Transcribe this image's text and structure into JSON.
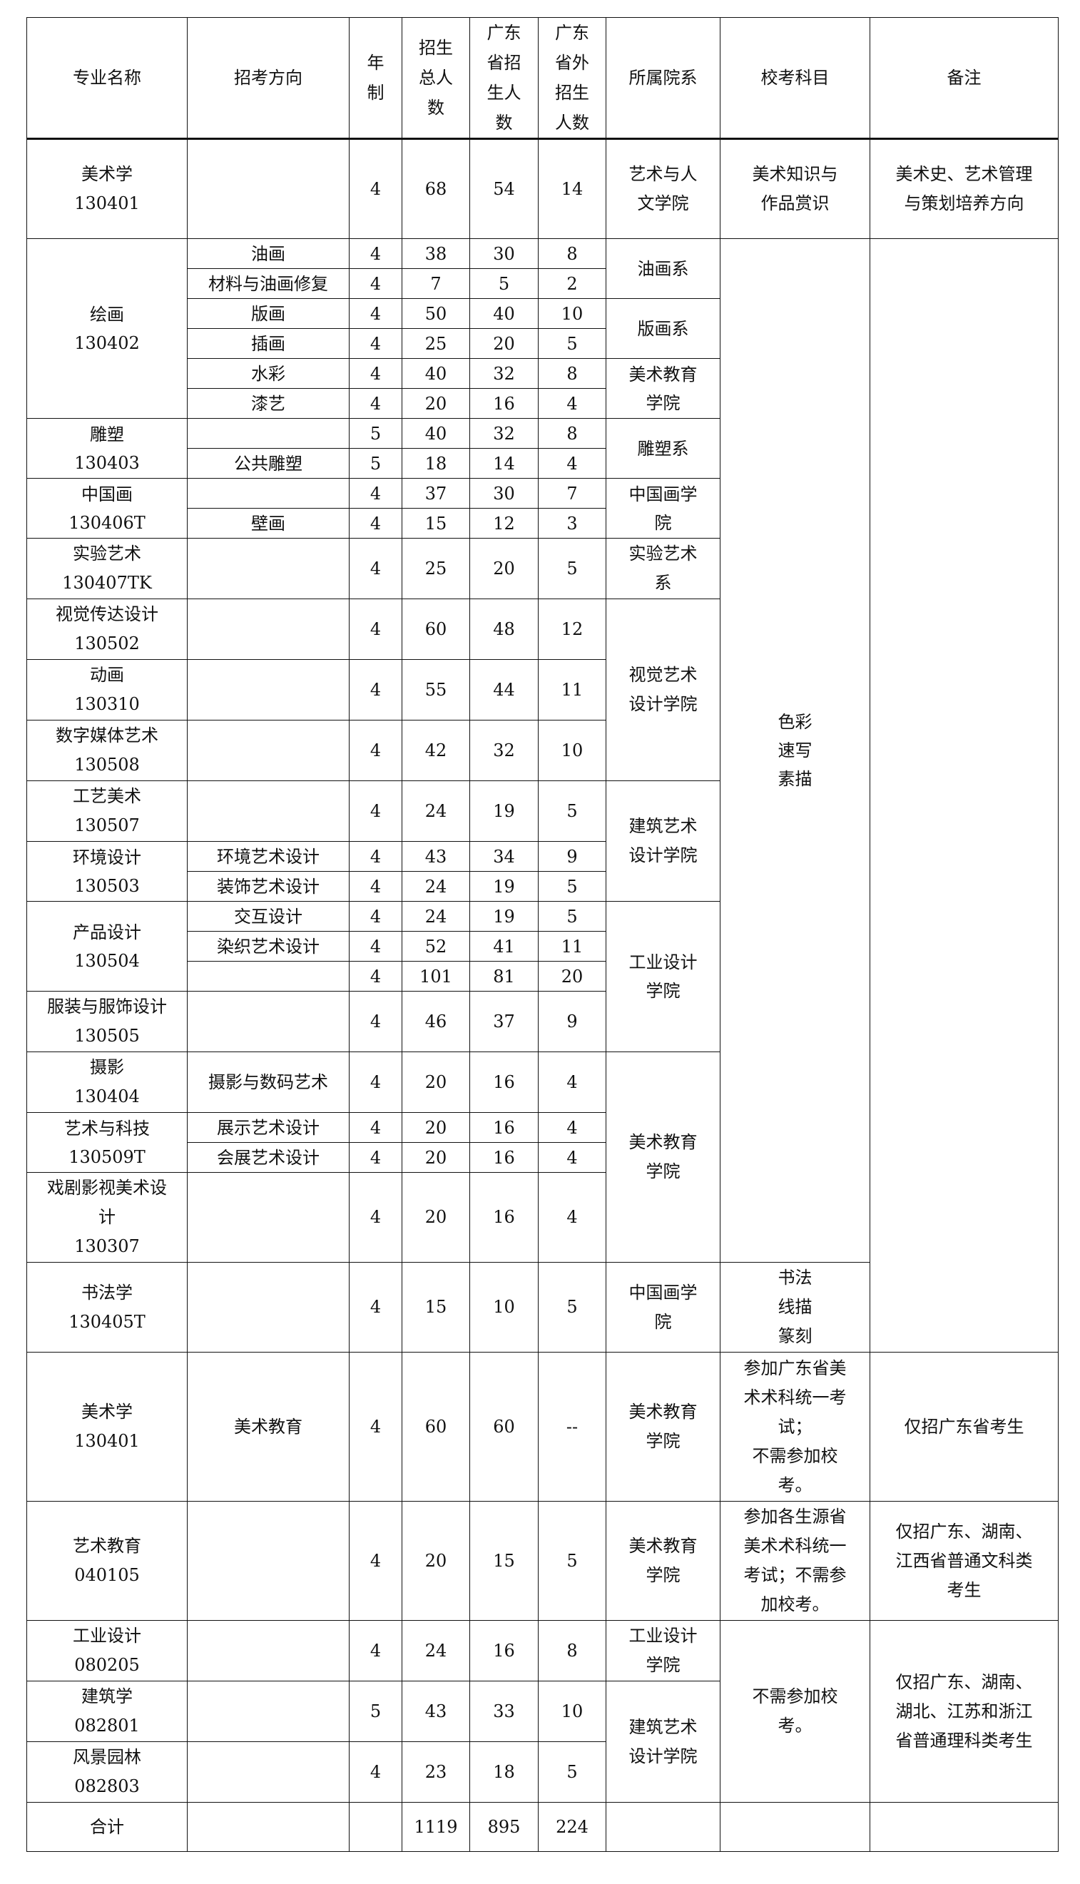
{
  "header": {
    "name": "专业名称",
    "direction": "招考方向",
    "years": "年\n制",
    "total": "招生\n总人\n数",
    "gd": "广东\n省招\n生人\n数",
    "out": "广东\n省外\n招生\n人数",
    "dept": "所属院系",
    "exam": "校考科目",
    "note": "备注"
  },
  "rows": [
    {
      "name": "美术学\n130401",
      "direction": "",
      "years": "4",
      "total": "68",
      "gd": "54",
      "out": "14",
      "dept": "艺术与人\n文学院",
      "exam": "美术知识与\n作品赏识",
      "note": "美术史、艺术管理\n与策划培养方向"
    },
    {
      "name": "绘画\n130402",
      "direction": "油画",
      "years": "4",
      "total": "38",
      "gd": "30",
      "out": "8",
      "dept": "油画系",
      "exam": "色彩\n速写\n素描",
      "note": ""
    },
    {
      "direction": "材料与油画修复",
      "years": "4",
      "total": "7",
      "gd": "5",
      "out": "2"
    },
    {
      "direction": "版画",
      "years": "4",
      "total": "50",
      "gd": "40",
      "out": "10",
      "dept": "版画系"
    },
    {
      "direction": "插画",
      "years": "4",
      "total": "25",
      "gd": "20",
      "out": "5"
    },
    {
      "direction": "水彩",
      "years": "4",
      "total": "40",
      "gd": "32",
      "out": "8",
      "dept": "美术教育\n学院"
    },
    {
      "direction": "漆艺",
      "years": "4",
      "total": "20",
      "gd": "16",
      "out": "4"
    },
    {
      "name": "雕塑\n130403",
      "direction": "",
      "years": "5",
      "total": "40",
      "gd": "32",
      "out": "8",
      "dept": "雕塑系"
    },
    {
      "direction": "公共雕塑",
      "years": "5",
      "total": "18",
      "gd": "14",
      "out": "4"
    },
    {
      "name": "中国画\n130406T",
      "direction": "",
      "years": "4",
      "total": "37",
      "gd": "30",
      "out": "7",
      "dept": "中国画学\n院"
    },
    {
      "direction": "壁画",
      "years": "4",
      "total": "15",
      "gd": "12",
      "out": "3"
    },
    {
      "name": "实验艺术\n130407TK",
      "direction": "",
      "years": "4",
      "total": "25",
      "gd": "20",
      "out": "5",
      "dept": "实验艺术\n系"
    },
    {
      "name": "视觉传达设计\n130502",
      "direction": "",
      "years": "4",
      "total": "60",
      "gd": "48",
      "out": "12",
      "dept": "视觉艺术\n设计学院"
    },
    {
      "name": "动画\n130310",
      "direction": "",
      "years": "4",
      "total": "55",
      "gd": "44",
      "out": "11"
    },
    {
      "name": "数字媒体艺术\n130508",
      "direction": "",
      "years": "4",
      "total": "42",
      "gd": "32",
      "out": "10"
    },
    {
      "name": "工艺美术\n130507",
      "direction": "",
      "years": "4",
      "total": "24",
      "gd": "19",
      "out": "5",
      "dept": "建筑艺术\n设计学院"
    },
    {
      "name": "环境设计\n130503",
      "direction": "环境艺术设计",
      "years": "4",
      "total": "43",
      "gd": "34",
      "out": "9"
    },
    {
      "direction": "装饰艺术设计",
      "years": "4",
      "total": "24",
      "gd": "19",
      "out": "5"
    },
    {
      "name": "产品设计\n130504",
      "direction": "交互设计",
      "years": "4",
      "total": "24",
      "gd": "19",
      "out": "5",
      "dept": "工业设计\n学院"
    },
    {
      "direction": "染织艺术设计",
      "years": "4",
      "total": "52",
      "gd": "41",
      "out": "11"
    },
    {
      "direction": "",
      "years": "4",
      "total": "101",
      "gd": "81",
      "out": "20"
    },
    {
      "name": "服装与服饰设计\n130505",
      "direction": "",
      "years": "4",
      "total": "46",
      "gd": "37",
      "out": "9"
    },
    {
      "name": "摄影\n130404",
      "direction": "摄影与数码艺术",
      "years": "4",
      "total": "20",
      "gd": "16",
      "out": "4",
      "dept": "美术教育\n学院"
    },
    {
      "name": "艺术与科技\n130509T",
      "direction": "展示艺术设计",
      "years": "4",
      "total": "20",
      "gd": "16",
      "out": "4"
    },
    {
      "direction": "会展艺术设计",
      "years": "4",
      "total": "20",
      "gd": "16",
      "out": "4"
    },
    {
      "name": "戏剧影视美术设\n计\n130307",
      "direction": "",
      "years": "4",
      "total": "20",
      "gd": "16",
      "out": "4"
    },
    {
      "name": "书法学\n130405T",
      "direction": "",
      "years": "4",
      "total": "15",
      "gd": "10",
      "out": "5",
      "dept": "中国画学\n院",
      "exam": "书法\n线描\n篆刻"
    },
    {
      "name": "美术学\n130401",
      "direction": "美术教育",
      "years": "4",
      "total": "60",
      "gd": "60",
      "out": "--",
      "dept": "美术教育\n学院",
      "exam": "参加广东省美\n术术科统一考\n试；\n不需参加校\n考。",
      "note": "仅招广东省考生"
    },
    {
      "name": "艺术教育\n040105",
      "direction": "",
      "years": "4",
      "total": "20",
      "gd": "15",
      "out": "5",
      "dept": "美术教育\n学院",
      "exam": "参加各生源省\n美术术科统一\n考试；不需参\n加校考。",
      "note": "仅招广东、湖南、\n江西省普通文科类\n考生"
    },
    {
      "name": "工业设计\n080205",
      "direction": "",
      "years": "4",
      "total": "24",
      "gd": "16",
      "out": "8",
      "dept": "工业设计\n学院",
      "exam": "不需参加校\n考。",
      "note": "仅招广东、湖南、\n湖北、江苏和浙江\n省普通理科类考生"
    },
    {
      "name": "建筑学\n082801",
      "direction": "",
      "years": "5",
      "total": "43",
      "gd": "33",
      "out": "10",
      "dept": "建筑艺术\n设计学院"
    },
    {
      "name": "风景园林\n082803",
      "direction": "",
      "years": "4",
      "total": "23",
      "gd": "18",
      "out": "5"
    },
    {
      "name": "合计",
      "direction": "",
      "years": "",
      "total": "1119",
      "gd": "895",
      "out": "224",
      "dept": "",
      "exam": "",
      "note": ""
    }
  ]
}
